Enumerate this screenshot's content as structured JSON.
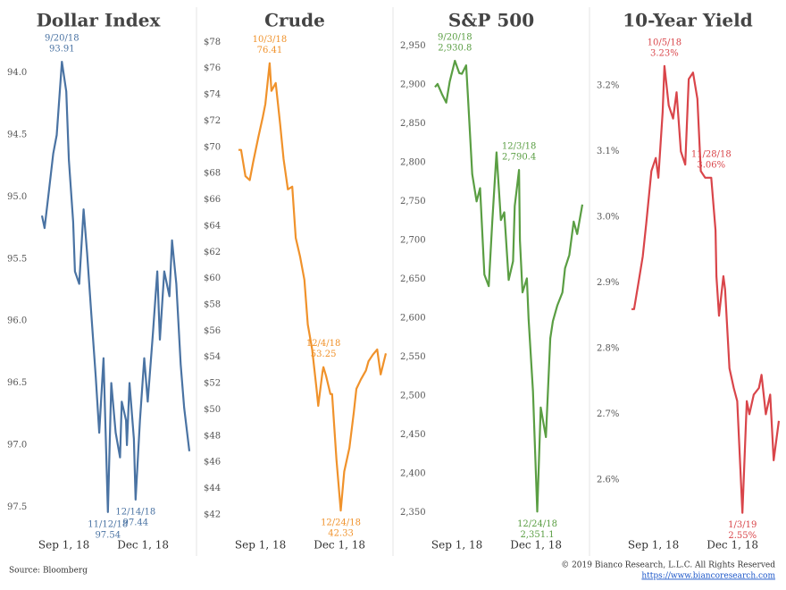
{
  "chart_data": [
    {
      "type": "line",
      "title": "Dollar Index",
      "color": "#4a73a3",
      "y_inverted": true,
      "x": [
        "2018-08-28",
        "2018-08-31",
        "2018-09-05",
        "2018-09-10",
        "2018-09-14",
        "2018-09-20",
        "2018-09-25",
        "2018-09-28",
        "2018-10-03",
        "2018-10-05",
        "2018-10-10",
        "2018-10-15",
        "2018-10-19",
        "2018-10-24",
        "2018-10-29",
        "2018-11-02",
        "2018-11-07",
        "2018-11-12",
        "2018-11-16",
        "2018-11-21",
        "2018-11-26",
        "2018-11-28",
        "2018-12-03",
        "2018-12-04",
        "2018-12-07",
        "2018-12-12",
        "2018-12-14",
        "2018-12-19",
        "2018-12-24",
        "2018-12-28",
        "2019-01-03",
        "2019-01-08",
        "2019-01-11",
        "2019-01-16",
        "2019-01-22",
        "2019-01-25",
        "2019-01-30",
        "2019-02-04",
        "2019-02-08",
        "2019-02-14"
      ],
      "values": [
        95.15,
        95.25,
        94.95,
        94.65,
        94.5,
        93.91,
        94.15,
        94.7,
        95.2,
        95.6,
        95.7,
        95.1,
        95.45,
        95.95,
        96.45,
        96.9,
        96.3,
        97.54,
        96.5,
        96.9,
        97.1,
        96.65,
        96.8,
        97.0,
        96.5,
        96.95,
        97.44,
        96.8,
        96.3,
        96.65,
        96.1,
        95.6,
        96.15,
        95.6,
        95.8,
        95.35,
        95.7,
        96.35,
        96.7,
        97.05
      ],
      "xlim": [
        "2018-08-28",
        "2019-02-14"
      ],
      "xticks": [
        {
          "value": "2018-09-01",
          "label": "Sep 1, 18"
        },
        {
          "value": "2018-12-01",
          "label": "Dec 1, 18"
        }
      ],
      "ylim": [
        93.7,
        97.7
      ],
      "yticks": [
        {
          "value": 94,
          "label": "94.0"
        },
        94.5,
        {
          "value": 95,
          "label": "95.0"
        },
        95.5,
        {
          "value": 96,
          "label": "96.0"
        },
        96.5,
        {
          "value": 97,
          "label": "97.0"
        },
        97.5
      ],
      "annotations": [
        {
          "x": "2018-09-20",
          "date": "9/20/18",
          "value": 93.91
        },
        {
          "x": "2018-11-12",
          "date": "11/12/18",
          "value": 97.54
        },
        {
          "x": "2018-12-14",
          "date": "12/14/18",
          "value": 97.44
        }
      ]
    },
    {
      "type": "line",
      "title": "Crude",
      "color": "#f0922b",
      "x": [
        "2018-08-28",
        "2018-08-31",
        "2018-09-05",
        "2018-09-10",
        "2018-09-14",
        "2018-09-20",
        "2018-09-25",
        "2018-09-28",
        "2018-10-03",
        "2018-10-05",
        "2018-10-10",
        "2018-10-15",
        "2018-10-19",
        "2018-10-24",
        "2018-10-29",
        "2018-11-02",
        "2018-11-07",
        "2018-11-12",
        "2018-11-16",
        "2018-11-21",
        "2018-11-26",
        "2018-11-28",
        "2018-12-03",
        "2018-12-04",
        "2018-12-07",
        "2018-12-12",
        "2018-12-14",
        "2018-12-19",
        "2018-12-24",
        "2018-12-28",
        "2019-01-03",
        "2019-01-08",
        "2019-01-11",
        "2019-01-16",
        "2019-01-22",
        "2019-01-25",
        "2019-01-30",
        "2019-02-04",
        "2019-02-08",
        "2019-02-14"
      ],
      "values": [
        69.8,
        69.8,
        67.8,
        67.5,
        68.9,
        70.8,
        72.3,
        73.3,
        76.41,
        74.3,
        74.9,
        71.8,
        69.1,
        66.8,
        67.0,
        63.1,
        61.7,
        59.9,
        56.5,
        54.6,
        51.6,
        50.3,
        52.9,
        53.25,
        52.6,
        51.2,
        51.2,
        46.2,
        42.33,
        45.3,
        47.1,
        49.8,
        51.6,
        52.3,
        53.0,
        53.7,
        54.2,
        54.6,
        52.7,
        54.3
      ],
      "xlim": [
        "2018-08-28",
        "2019-02-14"
      ],
      "xticks": [
        {
          "value": "2018-09-01",
          "label": "Sep 1, 18"
        },
        {
          "value": "2018-12-01",
          "label": "Dec 1, 18"
        }
      ],
      "ylim": [
        40.7,
        78.5
      ],
      "yticks": [
        {
          "value": 42,
          "label": "$42"
        },
        {
          "value": 44,
          "label": "$44"
        },
        {
          "value": 46,
          "label": "$46"
        },
        {
          "value": 48,
          "label": "$48"
        },
        {
          "value": 50,
          "label": "$50"
        },
        {
          "value": 52,
          "label": "$52"
        },
        {
          "value": 54,
          "label": "$54"
        },
        {
          "value": 56,
          "label": "$56"
        },
        {
          "value": 58,
          "label": "$58"
        },
        {
          "value": 60,
          "label": "$60"
        },
        {
          "value": 62,
          "label": "$62"
        },
        {
          "value": 64,
          "label": "$64"
        },
        {
          "value": 66,
          "label": "$66"
        },
        {
          "value": 68,
          "label": "$68"
        },
        {
          "value": 70,
          "label": "$70"
        },
        {
          "value": 72,
          "label": "$72"
        },
        {
          "value": 74,
          "label": "$74"
        },
        {
          "value": 76,
          "label": "$76"
        },
        {
          "value": 78,
          "label": "$78"
        }
      ],
      "annotations": [
        {
          "x": "2018-10-03",
          "date": "10/3/18",
          "value": 76.41
        },
        {
          "x": "2018-12-04",
          "date": "12/4/18",
          "value": 53.25
        },
        {
          "x": "2018-12-24",
          "date": "12/24/18",
          "value": 42.33
        }
      ]
    },
    {
      "type": "line",
      "title": "S&P 500",
      "color": "#5a9e43",
      "x": [
        "2018-08-28",
        "2018-08-31",
        "2018-09-05",
        "2018-09-10",
        "2018-09-14",
        "2018-09-20",
        "2018-09-25",
        "2018-09-28",
        "2018-10-03",
        "2018-10-05",
        "2018-10-10",
        "2018-10-15",
        "2018-10-19",
        "2018-10-24",
        "2018-10-29",
        "2018-11-02",
        "2018-11-07",
        "2018-11-12",
        "2018-11-16",
        "2018-11-21",
        "2018-11-26",
        "2018-11-28",
        "2018-12-03",
        "2018-12-04",
        "2018-12-07",
        "2018-12-12",
        "2018-12-14",
        "2018-12-19",
        "2018-12-24",
        "2018-12-28",
        "2019-01-03",
        "2019-01-08",
        "2019-01-11",
        "2019-01-16",
        "2019-01-22",
        "2019-01-25",
        "2019-01-30",
        "2019-02-04",
        "2019-02-08",
        "2019-02-14"
      ],
      "values": [
        2897,
        2901,
        2888,
        2877,
        2904,
        2930.8,
        2915,
        2914,
        2925,
        2885,
        2785,
        2750,
        2767,
        2656,
        2641,
        2723,
        2813,
        2726,
        2736,
        2649,
        2673,
        2744,
        2790.4,
        2700,
        2633,
        2651,
        2599,
        2506,
        2351.1,
        2485,
        2447,
        2574,
        2596,
        2616,
        2633,
        2664,
        2681,
        2724,
        2708,
        2746
      ],
      "xlim": [
        "2018-08-28",
        "2019-02-14"
      ],
      "xticks": [
        {
          "value": "2018-09-01",
          "label": "Sep 1, 18"
        },
        {
          "value": "2018-12-01",
          "label": "Dec 1, 18"
        }
      ],
      "ylim": [
        2325,
        2963
      ],
      "yticks": [
        {
          "value": 2350,
          "label": "2,350"
        },
        {
          "value": 2400,
          "label": "2,400"
        },
        {
          "value": 2450,
          "label": "2,450"
        },
        {
          "value": 2500,
          "label": "2,500"
        },
        {
          "value": 2550,
          "label": "2,550"
        },
        {
          "value": 2600,
          "label": "2,600"
        },
        {
          "value": 2650,
          "label": "2,650"
        },
        {
          "value": 2700,
          "label": "2,700"
        },
        {
          "value": 2750,
          "label": "2,750"
        },
        {
          "value": 2800,
          "label": "2,800"
        },
        {
          "value": 2850,
          "label": "2,850"
        },
        {
          "value": 2900,
          "label": "2,900"
        },
        {
          "value": 2950,
          "label": "2,950"
        }
      ],
      "annotations": [
        {
          "x": "2018-09-20",
          "date": "9/20/18",
          "value": 2930.8,
          "value_label": "2,930.8"
        },
        {
          "x": "2018-12-03",
          "date": "12/3/18",
          "value": 2790.4,
          "value_label": "2,790.4"
        },
        {
          "x": "2018-12-24",
          "date": "12/24/18",
          "value": 2351.1,
          "value_label": "2,351.1"
        }
      ]
    },
    {
      "type": "line",
      "title": "10-Year Yield",
      "color": "#d9454a",
      "x": [
        "2018-08-28",
        "2018-08-31",
        "2018-09-05",
        "2018-09-10",
        "2018-09-14",
        "2018-09-20",
        "2018-09-25",
        "2018-09-28",
        "2018-10-03",
        "2018-10-05",
        "2018-10-10",
        "2018-10-15",
        "2018-10-19",
        "2018-10-24",
        "2018-10-29",
        "2018-11-02",
        "2018-11-07",
        "2018-11-12",
        "2018-11-16",
        "2018-11-21",
        "2018-11-26",
        "2018-11-28",
        "2018-12-03",
        "2018-12-04",
        "2018-12-07",
        "2018-12-12",
        "2018-12-14",
        "2018-12-19",
        "2018-12-24",
        "2018-12-28",
        "2019-01-03",
        "2019-01-08",
        "2019-01-11",
        "2019-01-16",
        "2019-01-22",
        "2019-01-25",
        "2019-01-30",
        "2019-02-04",
        "2019-02-08",
        "2019-02-14"
      ],
      "values": [
        2.86,
        2.86,
        2.9,
        2.94,
        2.99,
        3.07,
        3.09,
        3.06,
        3.16,
        3.23,
        3.17,
        3.15,
        3.19,
        3.1,
        3.08,
        3.21,
        3.22,
        3.18,
        3.07,
        3.06,
        3.06,
        3.06,
        2.98,
        2.91,
        2.85,
        2.91,
        2.89,
        2.77,
        2.74,
        2.72,
        2.55,
        2.72,
        2.7,
        2.73,
        2.74,
        2.76,
        2.7,
        2.73,
        2.63,
        2.69
      ],
      "xlim": [
        "2018-08-28",
        "2019-02-14"
      ],
      "xticks": [
        {
          "value": "2018-09-01",
          "label": "Sep 1, 18"
        },
        {
          "value": "2018-12-01",
          "label": "Dec 1, 18"
        }
      ],
      "ylim": [
        2.521,
        3.276
      ],
      "yticks": [
        {
          "value": 2.6,
          "label": "2.6%"
        },
        {
          "value": 2.7,
          "label": "2.7%"
        },
        {
          "value": 2.8,
          "label": "2.8%"
        },
        {
          "value": 2.9,
          "label": "2.9%"
        },
        {
          "value": 3.0,
          "label": "3.0%"
        },
        {
          "value": 3.1,
          "label": "3.1%"
        },
        {
          "value": 3.2,
          "label": "3.2%"
        }
      ],
      "annotations": [
        {
          "x": "2018-10-05",
          "date": "10/5/18",
          "value": 3.23,
          "value_label": "3.23%"
        },
        {
          "x": "2018-11-28",
          "date": "11/28/18",
          "value": 3.06,
          "value_label": "3.06%"
        },
        {
          "x": "2019-01-03",
          "date": "1/3/19",
          "value": 2.55,
          "value_label": "2.55%"
        }
      ]
    }
  ],
  "footer": {
    "source": "Source: Bloomberg",
    "copyright": "© 2019 Bianco Research, L.L.C. All Rights Reserved",
    "url": "https://www.biancoresearch.com"
  }
}
